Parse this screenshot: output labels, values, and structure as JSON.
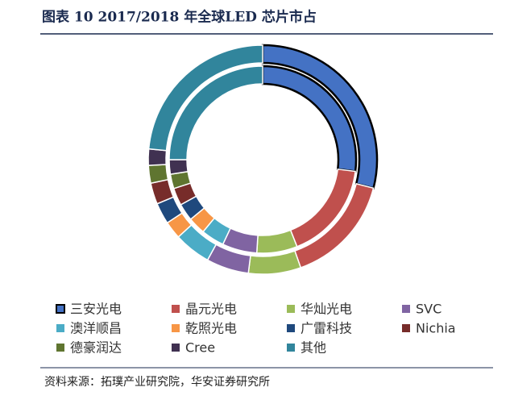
{
  "chart_data": {
    "type": "donut",
    "title": "图表 10 2017/2018 年全球LED 芯片市占",
    "categories": [
      "三安光电",
      "晶元光电",
      "华灿光电",
      "SVC",
      "澳洋顺昌",
      "乾照光电",
      "广雷科技",
      "Nichia",
      "德豪润达",
      "Cree",
      "其他"
    ],
    "colors": [
      "#4472c4",
      "#c0504d",
      "#9bbb59",
      "#8064a2",
      "#4bacc6",
      "#f79646",
      "#1f497d",
      "#772c2a",
      "#5f7530",
      "#403151",
      "#31859c"
    ],
    "series": [
      {
        "values": [
          29,
          15.6,
          7.4,
          6,
          5.2,
          2.5,
          3,
          3,
          2.5,
          2.3,
          23.5
        ]
      },
      {
        "values": [
          27,
          17,
          7,
          6,
          4,
          3,
          3,
          3,
          2.5,
          2.5,
          25
        ]
      }
    ],
    "outlined_index": 0,
    "outline_color": "#000000",
    "source": "资料来源：拓璞产业研究院，华安证券研究所"
  }
}
